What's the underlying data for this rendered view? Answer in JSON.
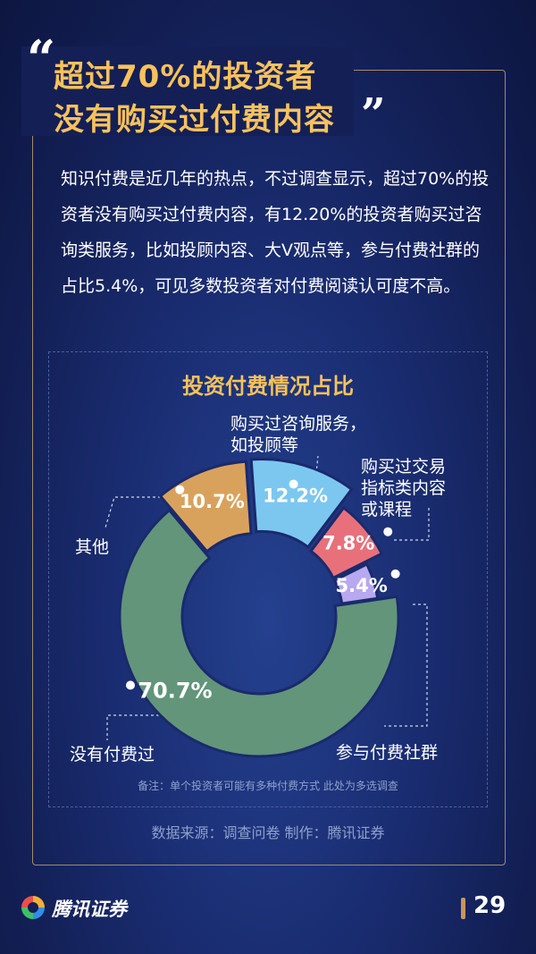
{
  "title": {
    "line1": "超过70%的投资者",
    "line2": "没有购买过付费内容",
    "quote_open": "“",
    "quote_close": "”"
  },
  "description": "知识付费是近几年的热点，不过调查显示，超过70%的投资者没有购买过付费内容，有12.20%的投资者购买过咨询类服务，比如投顾内容、大V观点等，参与付费社群的占比5.4%，可见多数投资者对付费阅读认可度不高。",
  "chart_data": {
    "type": "pie",
    "title": "投资付费情况占比",
    "slices": [
      {
        "label": "购买过咨询服务，如投顾等",
        "value": 12.2,
        "display": "12.2%",
        "color": "#7cc7f0"
      },
      {
        "label": "购买过交易指标类内容或课程",
        "value": 7.8,
        "display": "7.8%",
        "color": "#e8707a"
      },
      {
        "label": "参与付费社群",
        "value": 5.4,
        "display": "5.4%",
        "color": "#b7a8ef"
      },
      {
        "label": "没有付费过",
        "value": 70.7,
        "display": "70.7%",
        "color": "#62957a"
      },
      {
        "label": "其他",
        "value": 10.7,
        "display": "10.7%",
        "color": "#d9a25c"
      }
    ],
    "donut": true,
    "note": "备注：单个投资者可能有多种付费方式 此处为多选调查"
  },
  "labels": {
    "consult_line1": "购买过咨询服务，",
    "consult_line2": "如投顾等",
    "trade_line1": "购买过交易",
    "trade_line2": "指标类内容",
    "trade_line3": "或课程",
    "other": "其他",
    "none": "没有付费过",
    "community": "参与付费社群"
  },
  "footer": {
    "source": "数据来源：调查问卷  制作：腾讯证券",
    "brand": "腾讯证券",
    "page": "29"
  }
}
